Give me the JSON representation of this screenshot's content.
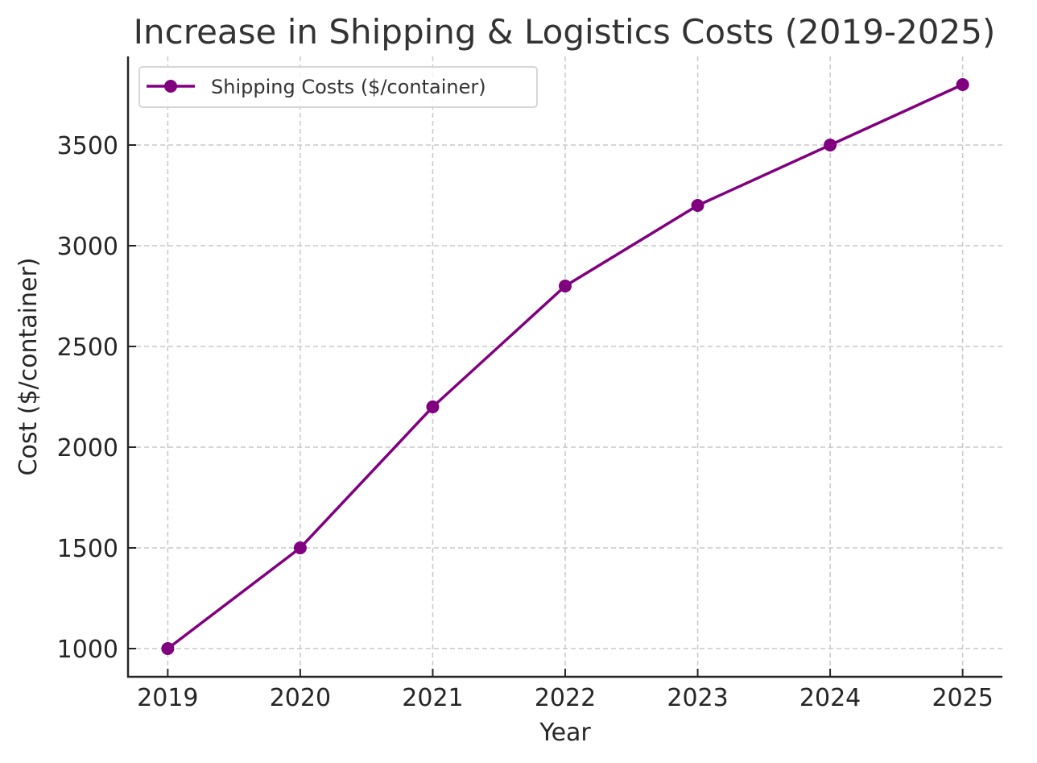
{
  "chart_data": {
    "type": "line",
    "title": "Increase in Shipping & Logistics Costs (2019-2025)",
    "xlabel": "Year",
    "ylabel": "Cost ($/container)",
    "x": [
      2019,
      2020,
      2021,
      2022,
      2023,
      2024,
      2025
    ],
    "x_tick_labels": [
      "2019",
      "2020",
      "2021",
      "2022",
      "2023",
      "2024",
      "2025"
    ],
    "y_ticks": [
      1000,
      1500,
      2000,
      2500,
      3000,
      3500
    ],
    "y_tick_labels": [
      "1000",
      "1500",
      "2000",
      "2500",
      "3000",
      "3500"
    ],
    "xlim": [
      2018.7,
      2025.3
    ],
    "ylim": [
      860,
      3940
    ],
    "grid": true,
    "legend_position": "top-left",
    "series": [
      {
        "name": "Shipping Costs ($/container)",
        "values": [
          1000,
          1500,
          2200,
          2800,
          3200,
          3500,
          3800
        ],
        "color": "#800080",
        "marker": "circle"
      }
    ]
  }
}
